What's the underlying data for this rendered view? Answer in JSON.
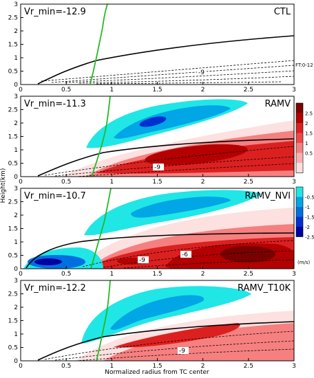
{
  "figure": {
    "ylabel": "Height(km)",
    "xlabel": "Normalized radius from TC center",
    "ft_note": "FT:0-12",
    "unit_label": "(m/s)"
  },
  "colorbars": {
    "positive": {
      "ticks": [
        "2.5",
        "2",
        "1.5",
        "1",
        "0.5"
      ],
      "colors": [
        "#7a0000",
        "#b40000",
        "#dc2020",
        "#f04848",
        "#f68080",
        "#fab0b0",
        "#fde0e0"
      ]
    },
    "negative": {
      "ticks": [
        "-0.5",
        "-1",
        "-1.5",
        "-2",
        "-2.5"
      ],
      "colors": [
        "#20e6e6",
        "#00a6e6",
        "#0070e0",
        "#0030d0",
        "#0000a0"
      ]
    }
  },
  "chart_data": [
    {
      "type": "contour",
      "panel": "CTL",
      "annotation": "Vr_min=-12.9",
      "x_ticks": [
        "0",
        "0.5",
        "1",
        "1.5",
        "2",
        "2.5",
        "3"
      ],
      "y_ticks": [
        "0",
        "0.5",
        "1",
        "1.5",
        "2",
        "2.5",
        "3"
      ],
      "xlim": [
        0,
        3
      ],
      "ylim": [
        0,
        3
      ],
      "contour_labels": [
        "-9"
      ],
      "fill": "none"
    },
    {
      "type": "contour",
      "panel": "RAMV",
      "annotation": "Vr_min=-11.3",
      "x_ticks": [
        "0",
        "0.5",
        "1",
        "1.5",
        "2",
        "2.5",
        "3"
      ],
      "y_ticks": [
        "0",
        "0.5",
        "1",
        "1.5",
        "2",
        "2.5",
        "3"
      ],
      "xlim": [
        0,
        3
      ],
      "ylim": [
        0,
        3
      ],
      "contour_labels": [
        "-9"
      ],
      "fill": "shaded"
    },
    {
      "type": "contour",
      "panel": "RAMV_NVI",
      "annotation": "Vr_min=-10.7",
      "x_ticks": [
        "0",
        "0.5",
        "1",
        "1.5",
        "2",
        "2.5",
        "3"
      ],
      "y_ticks": [
        "0",
        "0.5",
        "1",
        "1.5",
        "2",
        "2.5",
        "3"
      ],
      "xlim": [
        0,
        3
      ],
      "ylim": [
        0,
        3
      ],
      "contour_labels": [
        "-9",
        "-6"
      ],
      "fill": "shaded"
    },
    {
      "type": "contour",
      "panel": "RAMV_T10K",
      "annotation": "Vr_min=-12.2",
      "x_ticks": [
        "0",
        "0.5",
        "1",
        "1.5",
        "2",
        "2.5",
        "3"
      ],
      "y_ticks": [
        "0",
        "0.5",
        "1",
        "1.5",
        "2",
        "2.5",
        "3"
      ],
      "xlim": [
        0,
        3
      ],
      "ylim": [
        0,
        3
      ],
      "contour_labels": [
        "-9"
      ],
      "fill": "shaded"
    }
  ]
}
